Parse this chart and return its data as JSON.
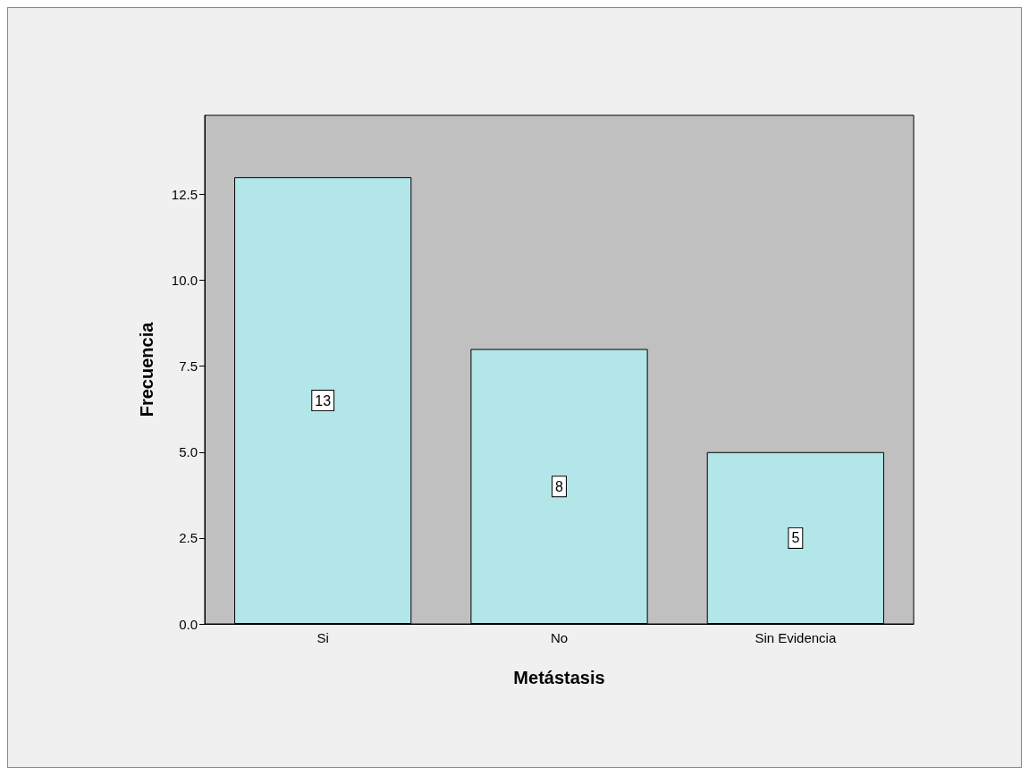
{
  "chart_data": {
    "type": "bar",
    "xlabel": "Metástasis",
    "ylabel": "Frecuencia",
    "categories": [
      "Si",
      "No",
      "Sin Evidencia"
    ],
    "values": [
      13,
      8,
      5
    ],
    "color": "#b3e6e8",
    "data_labels": true,
    "ylim": [
      0,
      14.8
    ],
    "yticks": [
      {
        "value": 0,
        "label": "0.0"
      },
      {
        "value": 2.5,
        "label": "2.5"
      },
      {
        "value": 5,
        "label": "5.0"
      },
      {
        "value": 7.5,
        "label": "7.5"
      },
      {
        "value": 10,
        "label": "10.0"
      },
      {
        "value": 12.5,
        "label": "12.5"
      }
    ],
    "grid": false
  }
}
